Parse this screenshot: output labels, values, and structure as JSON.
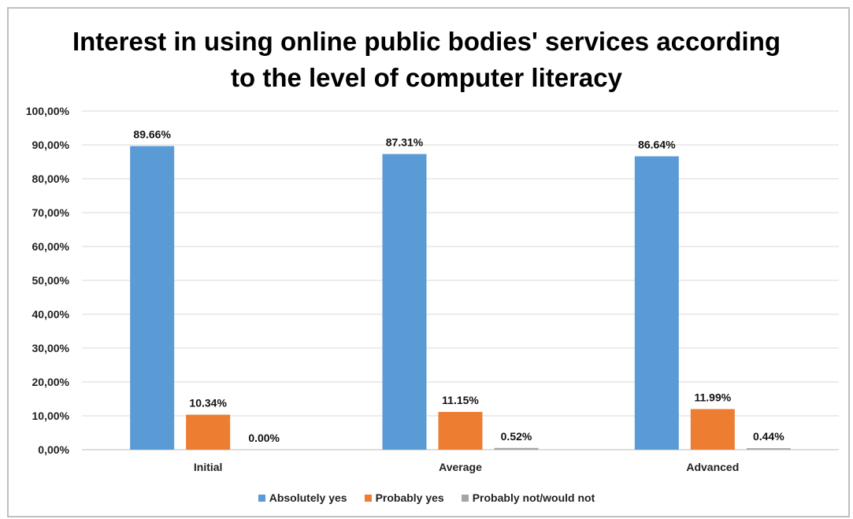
{
  "chart_data": {
    "type": "bar",
    "title_lines": [
      "Interest in using online public bodies' services according",
      "to the level of computer literacy"
    ],
    "categories": [
      "Initial",
      "Average",
      "Advanced"
    ],
    "series": [
      {
        "name": "Absolutely yes",
        "color": "#5b9bd5",
        "values": [
          89.66,
          87.31,
          86.64
        ],
        "labels": [
          "89.66%",
          "87.31%",
          "86.64%"
        ]
      },
      {
        "name": "Probably yes",
        "color": "#ed7d31",
        "values": [
          10.34,
          11.15,
          11.99
        ],
        "labels": [
          "10.34%",
          "11.15%",
          "11.99%"
        ]
      },
      {
        "name": "Probably not/would not",
        "color": "#a5a5a5",
        "values": [
          0.0,
          0.52,
          0.44
        ],
        "labels": [
          "0.00%",
          "0.52%",
          "0.44%"
        ]
      }
    ],
    "ylim": [
      0,
      100
    ],
    "yticks": [
      "0,00%",
      "10,00%",
      "20,00%",
      "30,00%",
      "40,00%",
      "50,00%",
      "60,00%",
      "70,00%",
      "80,00%",
      "90,00%",
      "100,00%"
    ],
    "grid": true,
    "legend_position": "bottom"
  }
}
